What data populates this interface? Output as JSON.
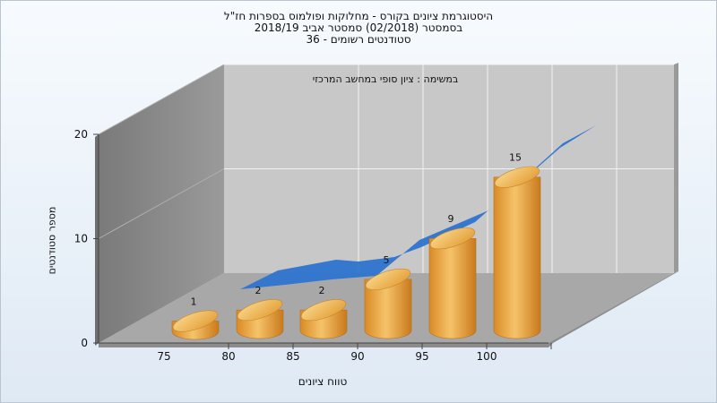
{
  "chart_data": {
    "type": "bar",
    "title_lines": [
      "היסטוגרמת ציונים בקורס - מחלוקות ופולמוס בספרות חז\"ל",
      "בסמסטר  (02/2018)  סמסטר אביב 2018/19",
      "סטודנטים רשומים - 36"
    ],
    "annotation": "במשימה : ציון סופי במחשב המרכזי",
    "xlabel": "טווח ציונים",
    "ylabel": "מספר סטודנטים",
    "x_ticks": [
      "75",
      "80",
      "85",
      "90",
      "95",
      "100"
    ],
    "y_ticks": [
      "0",
      "10",
      "20"
    ],
    "ylim": [
      0,
      20
    ],
    "values": [
      1,
      2,
      2,
      5,
      9,
      15
    ],
    "value_labels": [
      "1",
      "2",
      "2",
      "5",
      "9",
      "15"
    ],
    "bar_style": "3d-cylinder",
    "trend_surface": true,
    "colors": {
      "bar": "#e8a23a",
      "bar_highlight": "#f8d48a",
      "trend": "#2f74d0",
      "back_wall": "#c9c9c9",
      "side_wall": "#8a8a8a",
      "floor": "#a9a9a9"
    }
  }
}
